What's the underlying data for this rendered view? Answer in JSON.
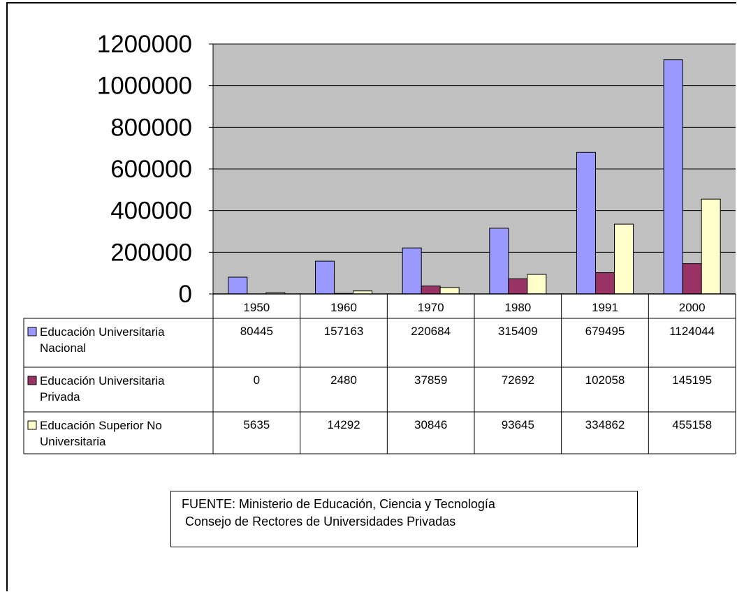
{
  "chart_data": {
    "type": "bar",
    "categories": [
      "1950",
      "1960",
      "1970",
      "1980",
      "1991",
      "2000"
    ],
    "ylim": [
      0,
      1200000
    ],
    "yticks": [
      "0",
      "200000",
      "400000",
      "600000",
      "800000",
      "1000000",
      "1200000"
    ],
    "grid": true,
    "plot_background": "#c0c0c0",
    "series": [
      {
        "name_lines": [
          "Educación Universitaria",
          "Nacional"
        ],
        "color": "#9999ff",
        "values": [
          80445,
          157163,
          220684,
          315409,
          679495,
          1124044
        ],
        "labels": [
          "80445",
          "157163",
          "220684",
          "315409",
          "679495",
          "1124044"
        ]
      },
      {
        "name_lines": [
          "Educación Universitaria",
          "Privada"
        ],
        "color": "#993366",
        "values": [
          0,
          2480,
          37859,
          72692,
          102058,
          145195
        ],
        "labels": [
          "0",
          "2480",
          "37859",
          "72692",
          "102058",
          "145195"
        ]
      },
      {
        "name_lines": [
          "Educación Superior No",
          "Universitaria"
        ],
        "color": "#ffffcc",
        "values": [
          5635,
          14292,
          30846,
          93645,
          334862,
          455158
        ],
        "labels": [
          "5635",
          "14292",
          "30846",
          "93645",
          "334862",
          "455158"
        ]
      }
    ]
  },
  "source": {
    "line1": "FUENTE: Ministerio de Educación, Ciencia y Tecnología",
    "line2": " Consejo de Rectores de Universidades Privadas"
  }
}
